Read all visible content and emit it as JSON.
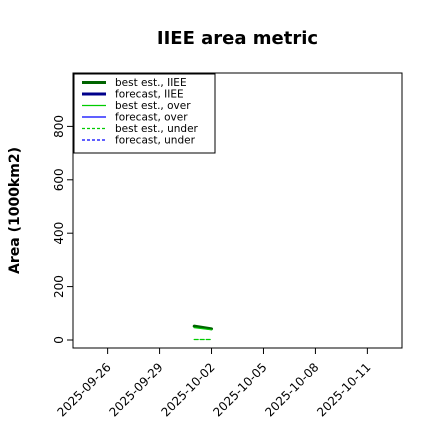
{
  "chart_data": {
    "type": "line",
    "title": "IIEE area metric",
    "ylabel": "Area (1000km2)",
    "xlabel": "",
    "ylim": [
      -30,
      1000
    ],
    "y_ticks": [
      0,
      200,
      400,
      600,
      800
    ],
    "x_ticks": [
      {
        "date": "2025-09-26",
        "label": "2025-09-26",
        "color": "#000000"
      },
      {
        "date": "2025-09-29",
        "label": "2025-09-29",
        "color": "#000000"
      },
      {
        "date": "2025-10-02",
        "label": "2025-10-02",
        "color": "#228b22"
      },
      {
        "date": "2025-10-05",
        "label": "2025-10-05",
        "color": "#000000"
      },
      {
        "date": "2025-10-08",
        "label": "2025-10-08",
        "color": "#000000"
      },
      {
        "date": "2025-10-11",
        "label": "2025-10-11",
        "color": "#000000"
      }
    ],
    "xlim": [
      "2025-09-24",
      "2025-10-13"
    ],
    "grid": false,
    "legend_position": "top-left",
    "series": [
      {
        "name": "best est., IIEE",
        "color": "#006400",
        "width": 3,
        "dash": "solid",
        "x": [
          "2025-10-01",
          "2025-10-02"
        ],
        "y": [
          52,
          42
        ]
      },
      {
        "name": "forecast, IIEE",
        "color": "#00008b",
        "width": 3,
        "dash": "solid",
        "x": [],
        "y": []
      },
      {
        "name": "best est., over",
        "color": "#00cc00",
        "width": 1.2,
        "dash": "solid",
        "x": [
          "2025-10-01",
          "2025-10-02"
        ],
        "y": [
          46,
          38
        ]
      },
      {
        "name": "forecast, over",
        "color": "#0000ff",
        "width": 1.2,
        "dash": "solid",
        "x": [],
        "y": []
      },
      {
        "name": "best est., under",
        "color": "#00cc00",
        "width": 1.2,
        "dash": "dashed",
        "x": [
          "2025-10-01",
          "2025-10-02"
        ],
        "y": [
          2,
          2
        ]
      },
      {
        "name": "forecast, under",
        "color": "#0000ff",
        "width": 1.2,
        "dash": "dashed",
        "x": [],
        "y": []
      }
    ]
  }
}
